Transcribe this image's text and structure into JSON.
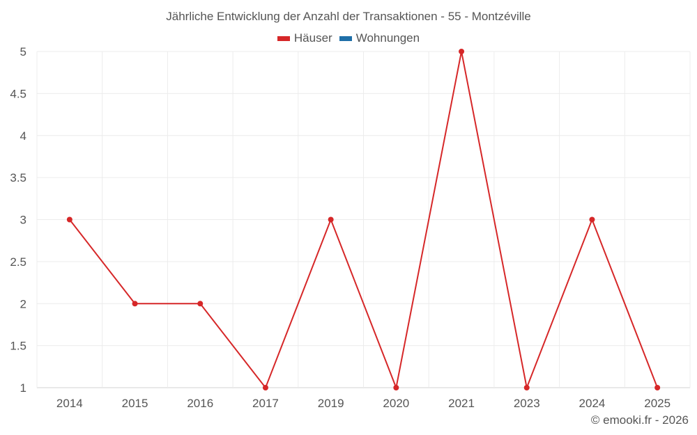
{
  "chart_data": {
    "type": "line",
    "title": "Jährliche Entwicklung der Anzahl der Transaktionen - 55 - Montzéville",
    "xlabel": "",
    "ylabel": "",
    "categories": [
      "2014",
      "2015",
      "2016",
      "2017",
      "2019",
      "2020",
      "2021",
      "2023",
      "2024",
      "2025"
    ],
    "series": [
      {
        "name": "Häuser",
        "color": "#d62728",
        "values": [
          3,
          2,
          2,
          1,
          3,
          1,
          5,
          1,
          3,
          1
        ]
      },
      {
        "name": "Wohnungen",
        "color": "#1f6fa8",
        "values": []
      }
    ],
    "ylim": [
      1,
      5
    ],
    "yticks": [
      "1",
      "1.5",
      "2",
      "2.5",
      "3",
      "3.5",
      "4",
      "4.5",
      "5"
    ],
    "grid": true,
    "legend_position": "top"
  },
  "legend": [
    {
      "label": "Häuser",
      "color": "#d62728"
    },
    {
      "label": "Wohnungen",
      "color": "#1f6fa8"
    }
  ],
  "credit": "© emooki.fr - 2026"
}
